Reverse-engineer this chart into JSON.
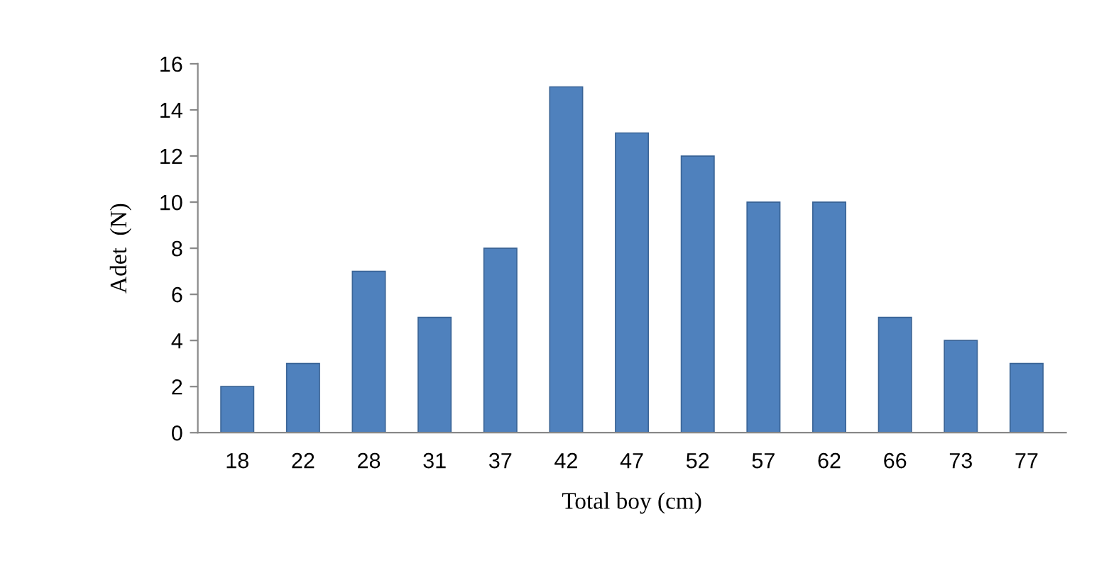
{
  "chart_data": {
    "type": "bar",
    "xlabel": "Total boy (cm)",
    "ylabel": "Adet  (N)",
    "categories": [
      "18",
      "22",
      "28",
      "31",
      "37",
      "42",
      "47",
      "52",
      "57",
      "62",
      "66",
      "73",
      "77"
    ],
    "values": [
      2,
      3,
      7,
      5,
      8,
      15,
      13,
      12,
      10,
      10,
      5,
      4,
      3
    ],
    "color": "#4f81bd",
    "ylim": [
      0,
      16
    ],
    "yticks": [
      0,
      2,
      4,
      6,
      8,
      10,
      12,
      14,
      16
    ],
    "grid": false
  }
}
